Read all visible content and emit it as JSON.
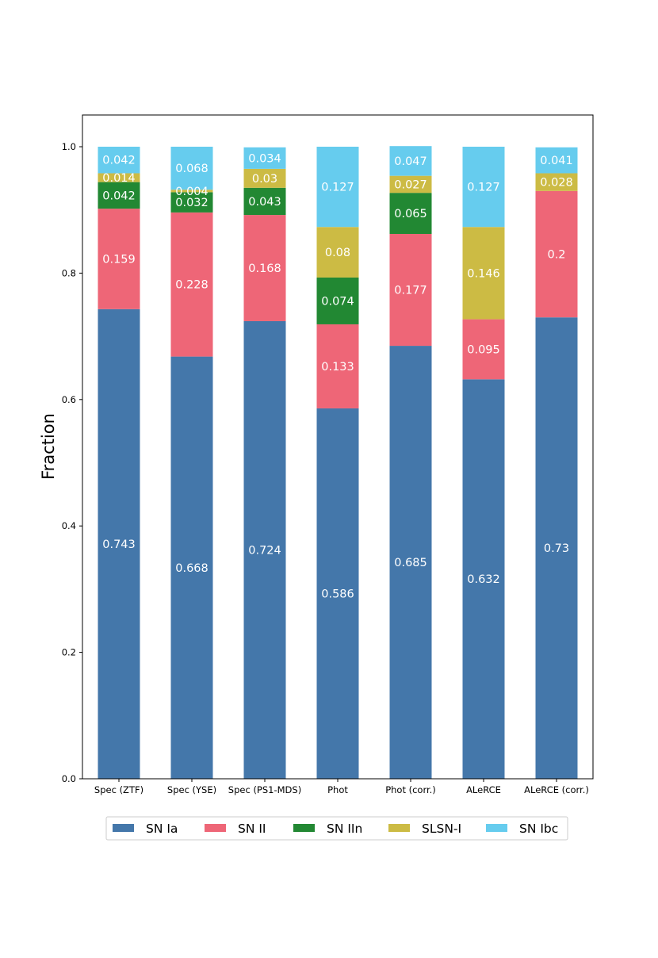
{
  "chart_data": {
    "type": "bar",
    "stacked": true,
    "title": "",
    "xlabel": "",
    "ylabel": "Fraction",
    "ylim": [
      0,
      1.05
    ],
    "yticks": [
      "0.0",
      "0.2",
      "0.4",
      "0.6",
      "0.8",
      "1.0"
    ],
    "categories": [
      "Spec (ZTF)",
      "Spec (YSE)",
      "Spec (PS1-MDS)",
      "Phot",
      "Phot (corr.)",
      "ALeRCE",
      "ALeRCE (corr.)"
    ],
    "series": [
      {
        "name": "SN Ia",
        "color": "#4477aa",
        "values": [
          0.743,
          0.668,
          0.724,
          0.586,
          0.685,
          0.632,
          0.73
        ],
        "labels": [
          "0.743",
          "0.668",
          "0.724",
          "0.586",
          "0.685",
          "0.632",
          "0.73"
        ]
      },
      {
        "name": "SN II",
        "color": "#ee6677",
        "values": [
          0.159,
          0.228,
          0.168,
          0.133,
          0.177,
          0.095,
          0.2
        ],
        "labels": [
          "0.159",
          "0.228",
          "0.168",
          "0.133",
          "0.177",
          "0.095",
          "0.2"
        ]
      },
      {
        "name": "SN IIn",
        "color": "#228833",
        "values": [
          0.042,
          0.032,
          0.043,
          0.074,
          0.065,
          0,
          0
        ],
        "labels": [
          "0.042",
          "0.032",
          "0.043",
          "0.074",
          "0.065",
          "",
          ""
        ]
      },
      {
        "name": "SLSN-I",
        "color": "#ccbb44",
        "values": [
          0.014,
          0.004,
          0.03,
          0.08,
          0.027,
          0.146,
          0.028
        ],
        "labels": [
          "0.014",
          "0.004",
          "0.03",
          "0.08",
          "0.027",
          "0.146",
          "0.028"
        ]
      },
      {
        "name": "SN Ibc",
        "color": "#66ccee",
        "values": [
          0.042,
          0.068,
          0.034,
          0.127,
          0.047,
          0.127,
          0.041
        ],
        "labels": [
          "0.042",
          "0.068",
          "0.034",
          "0.127",
          "0.047",
          "0.127",
          "0.041"
        ]
      }
    ],
    "legend": {
      "position": "bottom-center",
      "entries": [
        "SN Ia",
        "SN II",
        "SN IIn",
        "SLSN-I",
        "SN Ibc"
      ]
    },
    "grid": false
  }
}
